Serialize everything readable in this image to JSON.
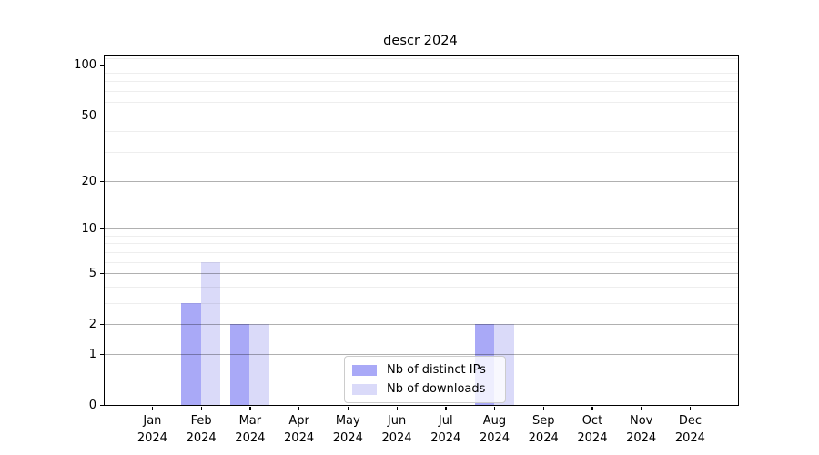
{
  "figure": {
    "title": "descr 2024"
  },
  "chart_data": {
    "type": "bar",
    "title": "descr 2024",
    "categories": [
      "Jan 2024",
      "Feb 2024",
      "Mar 2024",
      "Apr 2024",
      "May 2024",
      "Jun 2024",
      "Jul 2024",
      "Aug 2024",
      "Sep 2024",
      "Oct 2024",
      "Nov 2024",
      "Dec 2024"
    ],
    "series": [
      {
        "name": "Nb of distinct IPs",
        "color": "#a9a9f7",
        "values": [
          0,
          3,
          2,
          0,
          0,
          0,
          0,
          2,
          0,
          0,
          0,
          0
        ]
      },
      {
        "name": "Nb of downloads",
        "color": "#dadaf9",
        "values": [
          0,
          6,
          2,
          0,
          0,
          0,
          0,
          2,
          0,
          0,
          0,
          0
        ]
      }
    ],
    "xlabel": "",
    "ylabel": "",
    "yscale": "log10(1+y)",
    "ylim": [
      0,
      114
    ],
    "yticks_labeled": [
      0,
      1,
      2,
      5,
      10,
      20,
      50,
      100
    ],
    "ytick_labels": [
      "0",
      "1",
      "2",
      "5",
      "10",
      "20",
      "50",
      "100"
    ],
    "yticks_minor": [
      1,
      2,
      3,
      4,
      5,
      6,
      7,
      8,
      9,
      10,
      20,
      30,
      40,
      50,
      60,
      70,
      80,
      90,
      100,
      110
    ],
    "grid": true,
    "legend_position": "lower center"
  },
  "legend": {
    "items": [
      {
        "label": "Nb of distinct IPs",
        "color": "#a9a9f7"
      },
      {
        "label": "Nb of downloads",
        "color": "#dadaf9"
      }
    ]
  },
  "colors": {
    "background": "#ffffff",
    "axis": "#000000",
    "bar_distinct_ips": "#a9a9f7",
    "bar_downloads": "#dadaf9",
    "legend_border": "#cccccc"
  }
}
